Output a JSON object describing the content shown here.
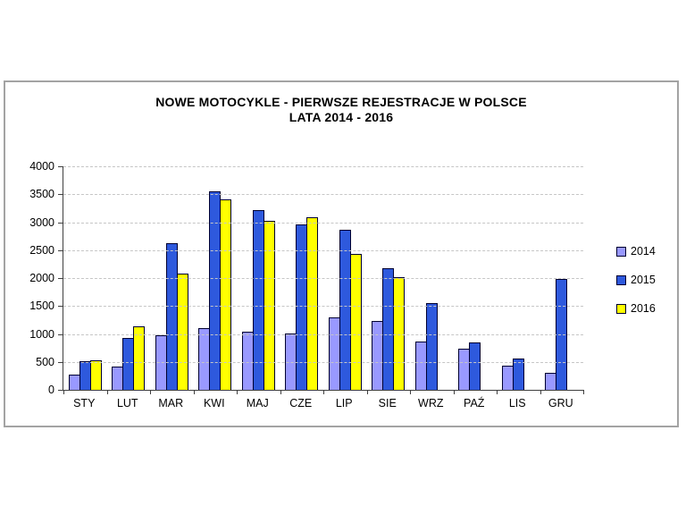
{
  "title": {
    "line1": "NOWE MOTOCYKLE - PIERWSZE REJESTRACJE W POLSCE",
    "line2": "LATA 2014 - 2016"
  },
  "chart_data": {
    "type": "bar",
    "title": "NOWE MOTOCYKLE - PIERWSZE REJESTRACJE W POLSCE",
    "subtitle": "LATA 2014 - 2016",
    "categories": [
      "STY",
      "LUT",
      "MAR",
      "KWI",
      "MAJ",
      "CZE",
      "LIP",
      "SIE",
      "WRZ",
      "PAŹ",
      "LIS",
      "GRU"
    ],
    "series": [
      {
        "name": "2014",
        "color": "#9999FF",
        "values": [
          270,
          420,
          980,
          1100,
          1040,
          1010,
          1290,
          1240,
          870,
          730,
          440,
          300
        ]
      },
      {
        "name": "2015",
        "color": "#2E59DD",
        "values": [
          520,
          930,
          2630,
          3560,
          3210,
          2960,
          2870,
          2170,
          1560,
          850,
          560,
          1990
        ]
      },
      {
        "name": "2016",
        "color": "#FFFF00",
        "values": [
          530,
          1130,
          2080,
          3410,
          3030,
          3090,
          2440,
          2020,
          null,
          null,
          null,
          null
        ]
      }
    ],
    "xlabel": "",
    "ylabel": "",
    "ylim": [
      0,
      4000
    ],
    "ytick_step": 500,
    "grid": true,
    "legend_position": "right"
  },
  "colors": {
    "bar_border": "#000030",
    "axis_line": "#3f3f3f",
    "gridline": "#c6c6c6",
    "frame_border": "#a3a3a3",
    "background": "#ffffff"
  }
}
